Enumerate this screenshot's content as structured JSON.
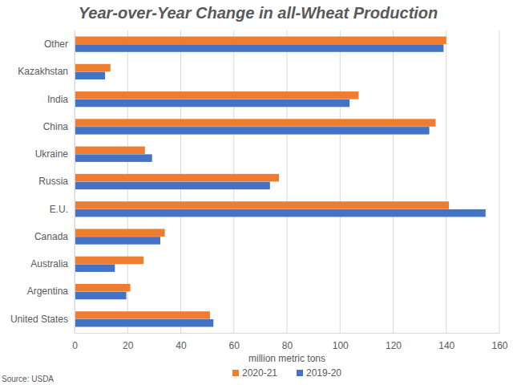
{
  "chart_data": {
    "type": "bar",
    "orientation": "horizontal",
    "title": "Year-over-Year Change in all-Wheat Production",
    "xlabel": "million metric tons",
    "source": "Source: USDA",
    "categories": [
      "Other",
      "Kazakhstan",
      "India",
      "China",
      "Ukraine",
      "Russia",
      "E.U.",
      "Canada",
      "Australia",
      "Argentina",
      "United States"
    ],
    "series": [
      {
        "name": "2020-21",
        "color": "#ed7d31",
        "values": [
          140,
          13.5,
          107,
          136,
          26.5,
          77,
          141,
          34,
          26,
          21,
          51
        ]
      },
      {
        "name": "2019-20",
        "color": "#4472c4",
        "values": [
          139,
          11.5,
          103.6,
          133.6,
          29.2,
          73.6,
          154.8,
          32.3,
          15.2,
          19.5,
          52.3
        ]
      }
    ],
    "xlim": [
      0,
      160
    ],
    "xticks": [
      0,
      20,
      40,
      60,
      80,
      100,
      120,
      140,
      160
    ],
    "grid": true,
    "legend": "bottom"
  }
}
